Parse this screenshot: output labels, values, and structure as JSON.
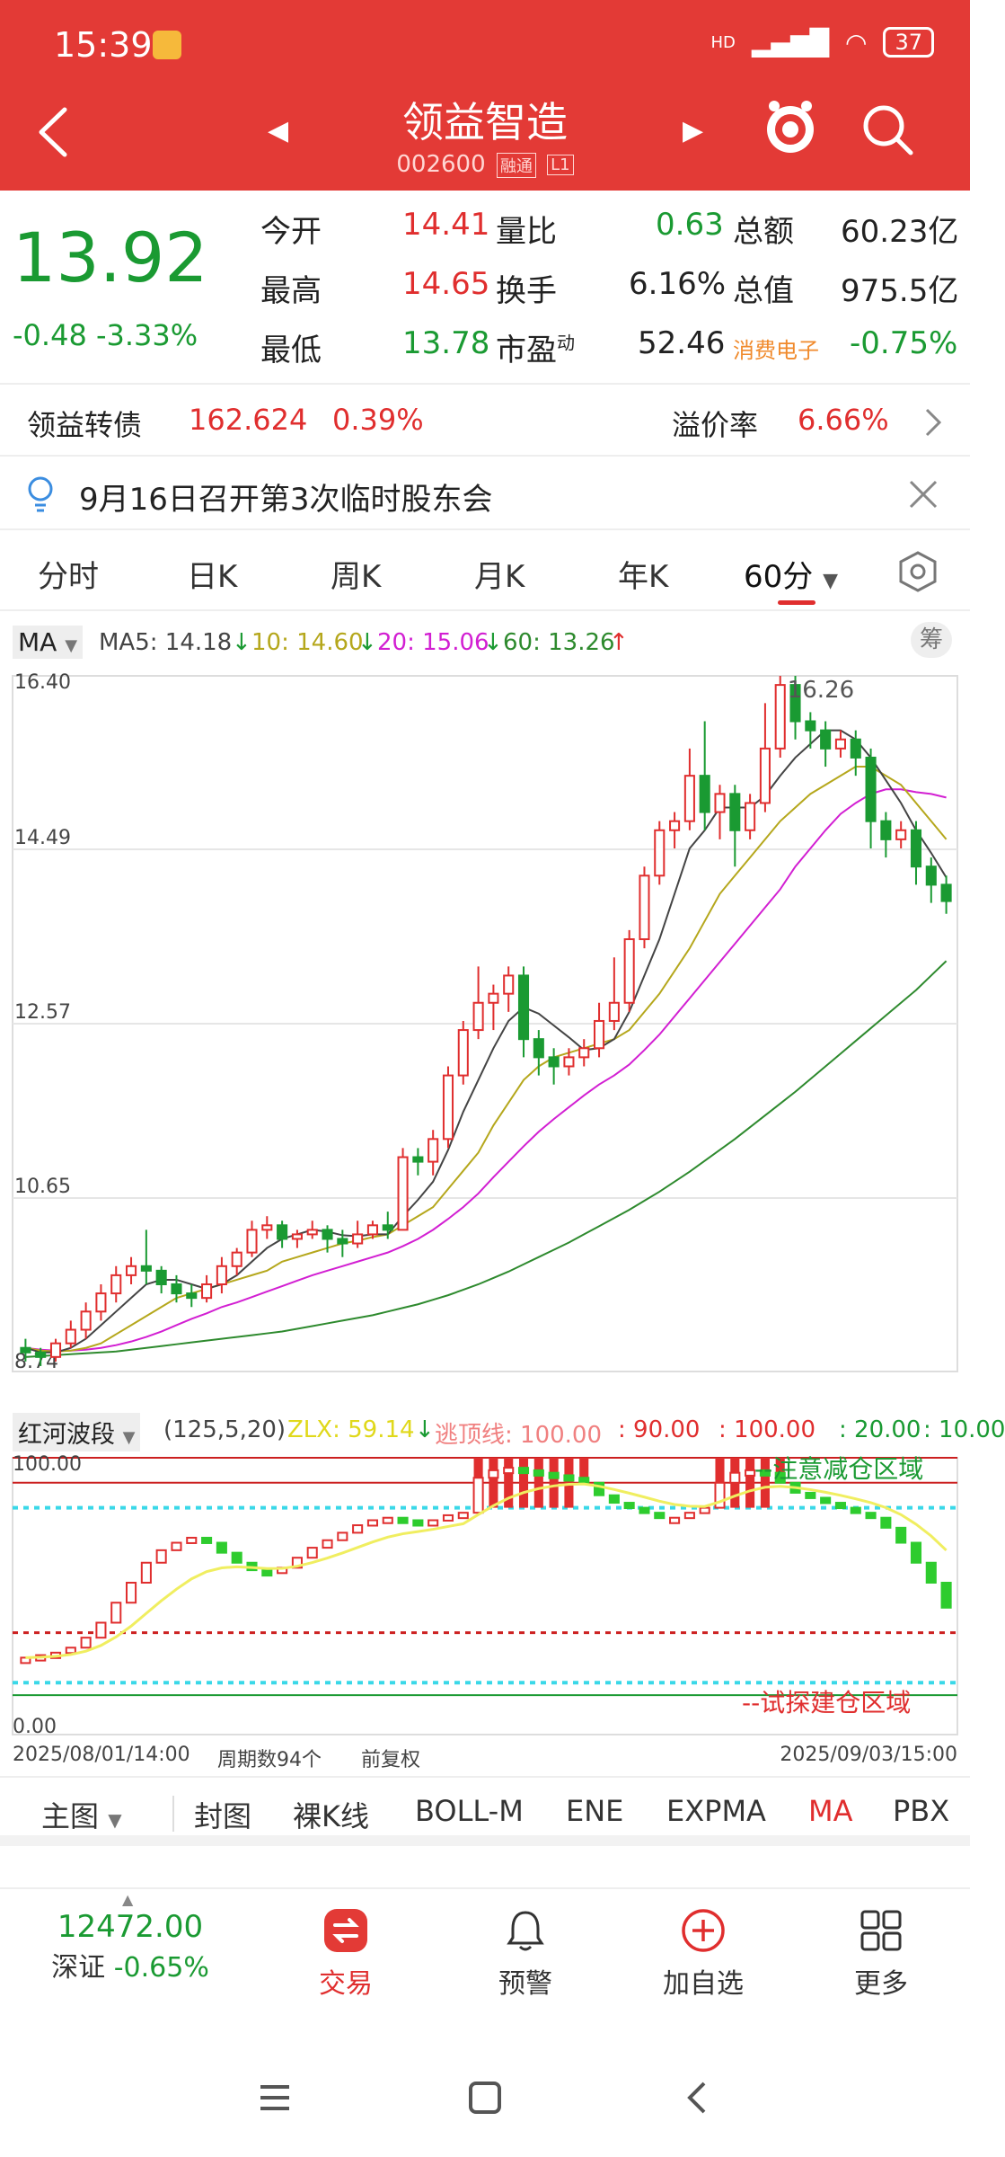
{
  "status": {
    "time": "15:39",
    "signal": "HD",
    "battery": "37"
  },
  "header": {
    "name": "领益智造",
    "code": "002600",
    "tag1": "融",
    "tag2": "通",
    "tag3": "L1"
  },
  "quote": {
    "price": "13.92",
    "change": "-0.48",
    "change_pct": "-3.33%",
    "open_label": "今开",
    "open": "14.41",
    "high_label": "最高",
    "high": "14.65",
    "low_label": "最低",
    "low": "13.78",
    "vol_ratio_label": "量比",
    "vol_ratio": "0.63",
    "turnover_label": "换手",
    "turnover": "6.16%",
    "pe_label": "市盈",
    "pe_sup": "动",
    "pe": "52.46",
    "amount_label": "总额",
    "amount": "60.23亿",
    "mktcap_label": "总值",
    "mktcap": "975.5亿",
    "sector": "消费电子",
    "sector_pct": "-0.75%"
  },
  "bond": {
    "label": "领益转债",
    "price": "162.624",
    "pct": "0.39%",
    "premium_label": "溢价率",
    "premium": "6.66%"
  },
  "notice": {
    "text": "9月16日召开第3次临时股东会"
  },
  "period_tabs": [
    "分时",
    "日K",
    "周K",
    "月K",
    "年K",
    "60分"
  ],
  "ma_legend": {
    "selector": "MA",
    "ma5": "MA5: 14.18",
    "ma10": "10: 14.60",
    "ma20": "20: 15.06",
    "ma60": "60: 13.26",
    "chip": "筹"
  },
  "chart_data": {
    "type": "candlestick",
    "y_labels": [
      "16.40",
      "14.49",
      "12.57",
      "10.65",
      "8.74"
    ],
    "peak_label": "16.26",
    "ylim": [
      8.74,
      16.4
    ],
    "candles": [
      [
        9.0,
        8.95,
        9.1,
        8.85
      ],
      [
        8.95,
        8.9,
        9.0,
        8.8
      ],
      [
        8.9,
        9.05,
        9.1,
        8.85
      ],
      [
        9.05,
        9.2,
        9.3,
        9.0
      ],
      [
        9.2,
        9.4,
        9.5,
        9.1
      ],
      [
        9.4,
        9.6,
        9.7,
        9.3
      ],
      [
        9.6,
        9.8,
        9.9,
        9.5
      ],
      [
        9.8,
        9.9,
        10.0,
        9.7
      ],
      [
        9.9,
        9.85,
        10.3,
        9.7
      ],
      [
        9.85,
        9.7,
        9.9,
        9.6
      ],
      [
        9.7,
        9.6,
        9.8,
        9.5
      ],
      [
        9.6,
        9.55,
        9.7,
        9.45
      ],
      [
        9.55,
        9.7,
        9.8,
        9.5
      ],
      [
        9.7,
        9.9,
        10.0,
        9.6
      ],
      [
        9.9,
        10.05,
        10.1,
        9.8
      ],
      [
        10.05,
        10.3,
        10.4,
        10.0
      ],
      [
        10.3,
        10.35,
        10.45,
        10.2
      ],
      [
        10.35,
        10.2,
        10.4,
        10.1
      ],
      [
        10.2,
        10.25,
        10.3,
        10.1
      ],
      [
        10.25,
        10.3,
        10.4,
        10.2
      ],
      [
        10.3,
        10.2,
        10.35,
        10.05
      ],
      [
        10.2,
        10.15,
        10.3,
        10.0
      ],
      [
        10.15,
        10.25,
        10.4,
        10.1
      ],
      [
        10.25,
        10.35,
        10.4,
        10.2
      ],
      [
        10.35,
        10.3,
        10.5,
        10.2
      ],
      [
        10.3,
        11.1,
        11.2,
        10.3
      ],
      [
        11.1,
        11.05,
        11.2,
        10.9
      ],
      [
        11.05,
        11.3,
        11.4,
        10.9
      ],
      [
        11.3,
        12.0,
        12.1,
        11.2
      ],
      [
        12.0,
        12.5,
        12.6,
        11.9
      ],
      [
        12.5,
        12.8,
        13.2,
        12.4
      ],
      [
        12.8,
        12.9,
        13.0,
        12.5
      ],
      [
        12.9,
        13.1,
        13.2,
        12.7
      ],
      [
        13.1,
        12.4,
        13.2,
        12.2
      ],
      [
        12.4,
        12.2,
        12.5,
        12.0
      ],
      [
        12.2,
        12.1,
        12.3,
        11.9
      ],
      [
        12.1,
        12.2,
        12.3,
        12.0
      ],
      [
        12.2,
        12.3,
        12.4,
        12.1
      ],
      [
        12.3,
        12.6,
        12.8,
        12.2
      ],
      [
        12.6,
        12.8,
        13.3,
        12.5
      ],
      [
        12.8,
        13.5,
        13.6,
        12.7
      ],
      [
        13.5,
        14.2,
        14.3,
        13.4
      ],
      [
        14.2,
        14.7,
        14.8,
        14.1
      ],
      [
        14.7,
        14.8,
        14.9,
        14.5
      ],
      [
        14.8,
        15.3,
        15.6,
        14.7
      ],
      [
        15.3,
        14.9,
        15.9,
        14.7
      ],
      [
        14.9,
        15.1,
        15.2,
        14.6
      ],
      [
        15.1,
        14.7,
        15.2,
        14.3
      ],
      [
        14.7,
        15.0,
        15.1,
        14.6
      ],
      [
        15.0,
        15.6,
        16.1,
        14.9
      ],
      [
        15.6,
        16.3,
        16.4,
        15.5
      ],
      [
        16.3,
        15.9,
        16.4,
        15.7
      ],
      [
        15.9,
        15.8,
        16.0,
        15.6
      ],
      [
        15.8,
        15.6,
        15.9,
        15.4
      ],
      [
        15.6,
        15.7,
        15.8,
        15.5
      ],
      [
        15.7,
        15.5,
        15.8,
        15.3
      ],
      [
        15.5,
        14.8,
        15.6,
        14.5
      ],
      [
        14.8,
        14.6,
        14.9,
        14.4
      ],
      [
        14.6,
        14.7,
        14.8,
        14.5
      ],
      [
        14.7,
        14.3,
        14.8,
        14.1
      ],
      [
        14.3,
        14.1,
        14.4,
        13.9
      ],
      [
        14.1,
        13.92,
        14.2,
        13.78
      ]
    ],
    "ma5": [
      9.0,
      8.95,
      8.95,
      9.0,
      9.1,
      9.25,
      9.4,
      9.55,
      9.7,
      9.75,
      9.75,
      9.7,
      9.65,
      9.7,
      9.8,
      9.95,
      10.1,
      10.2,
      10.25,
      10.3,
      10.28,
      10.24,
      10.23,
      10.25,
      10.25,
      10.45,
      10.63,
      10.83,
      11.18,
      11.6,
      11.95,
      12.3,
      12.6,
      12.75,
      12.68,
      12.55,
      12.42,
      12.28,
      12.3,
      12.4,
      12.7,
      13.1,
      13.5,
      14.0,
      14.5,
      14.7,
      14.95,
      14.95,
      14.95,
      15.08,
      15.3,
      15.5,
      15.65,
      15.8,
      15.8,
      15.7,
      15.5,
      15.25,
      15.0,
      14.7,
      14.45,
      14.18
    ],
    "ma10": [
      9.0,
      8.97,
      8.96,
      8.97,
      9.0,
      9.05,
      9.15,
      9.25,
      9.35,
      9.45,
      9.55,
      9.6,
      9.65,
      9.7,
      9.75,
      9.8,
      9.85,
      9.95,
      10.0,
      10.05,
      10.1,
      10.15,
      10.18,
      10.22,
      10.25,
      10.35,
      10.45,
      10.55,
      10.75,
      10.95,
      11.15,
      11.45,
      11.7,
      11.95,
      12.1,
      12.2,
      12.25,
      12.3,
      12.35,
      12.4,
      12.5,
      12.7,
      12.9,
      13.15,
      13.4,
      13.7,
      14.0,
      14.2,
      14.4,
      14.6,
      14.8,
      14.95,
      15.1,
      15.2,
      15.3,
      15.4,
      15.4,
      15.3,
      15.2,
      15.0,
      14.8,
      14.6
    ],
    "ma20": [
      9.0,
      8.98,
      8.97,
      8.97,
      8.98,
      9.0,
      9.03,
      9.07,
      9.12,
      9.18,
      9.25,
      9.32,
      9.38,
      9.45,
      9.5,
      9.56,
      9.62,
      9.68,
      9.74,
      9.8,
      9.85,
      9.9,
      9.95,
      10.0,
      10.05,
      10.12,
      10.2,
      10.3,
      10.42,
      10.55,
      10.7,
      10.88,
      11.05,
      11.22,
      11.38,
      11.52,
      11.65,
      11.78,
      11.9,
      12.0,
      12.12,
      12.28,
      12.45,
      12.65,
      12.85,
      13.05,
      13.25,
      13.45,
      13.65,
      13.85,
      14.05,
      14.3,
      14.5,
      14.7,
      14.88,
      15.0,
      15.1,
      15.15,
      15.15,
      15.12,
      15.1,
      15.06
    ],
    "ma60": [
      8.9,
      8.91,
      8.92,
      8.93,
      8.94,
      8.95,
      8.96,
      8.98,
      9.0,
      9.02,
      9.04,
      9.06,
      9.08,
      9.1,
      9.12,
      9.14,
      9.16,
      9.18,
      9.21,
      9.24,
      9.27,
      9.3,
      9.33,
      9.36,
      9.4,
      9.44,
      9.48,
      9.53,
      9.58,
      9.64,
      9.7,
      9.77,
      9.84,
      9.92,
      10.0,
      10.08,
      10.16,
      10.25,
      10.34,
      10.43,
      10.52,
      10.62,
      10.72,
      10.83,
      10.94,
      11.06,
      11.18,
      11.3,
      11.43,
      11.56,
      11.69,
      11.82,
      11.96,
      12.1,
      12.24,
      12.38,
      12.52,
      12.66,
      12.8,
      12.94,
      13.1,
      13.26
    ]
  },
  "indicator": {
    "name": "红河波段",
    "params": "(125,5,20)",
    "zlx": "ZLX: 59.14",
    "top_line": "逃顶线: 100.00",
    "v90": ": 90.00",
    "v100": ": 100.00",
    "v20": ": 20.00",
    "v10": ": 10.00",
    "max_label": "100.00",
    "min_label": "0.00",
    "zone_top": "--注意减仓区域",
    "zone_bottom": "--试探建仓区域",
    "values": [
      20,
      21,
      22,
      24,
      28,
      34,
      42,
      50,
      58,
      63,
      66,
      68,
      66,
      62,
      58,
      55,
      54,
      56,
      60,
      64,
      67,
      70,
      73,
      75,
      76,
      75,
      74,
      75,
      77,
      78,
      92,
      95,
      96,
      95,
      94,
      93,
      92,
      90,
      85,
      82,
      80,
      78,
      76,
      76,
      78,
      80,
      90,
      94,
      95,
      94,
      90,
      86,
      84,
      82,
      80,
      78,
      76,
      72,
      66,
      58,
      50,
      40
    ]
  },
  "dates": {
    "start": "2025/08/01/14:00",
    "count": "周期数94个",
    "adj": "前复权",
    "end": "2025/09/03/15:00"
  },
  "indicator_tabs": [
    "主图",
    "封图",
    "裸K线",
    "BOLL-M",
    "ENE",
    "EXPMA",
    "MA",
    "PBX"
  ],
  "bottom_bar": {
    "index_value": "12472.00",
    "index_name": "深证",
    "index_pct": "-0.65%",
    "trade": "交易",
    "alert": "预警",
    "add": "加自选",
    "more": "更多"
  },
  "colors": {
    "brand": "#e33a36",
    "up": "#e02e2e",
    "down": "#1a9a32",
    "ma5": "#444444",
    "ma10": "#b5a71c",
    "ma20": "#d21fd2",
    "ma60": "#2e8a2e"
  }
}
